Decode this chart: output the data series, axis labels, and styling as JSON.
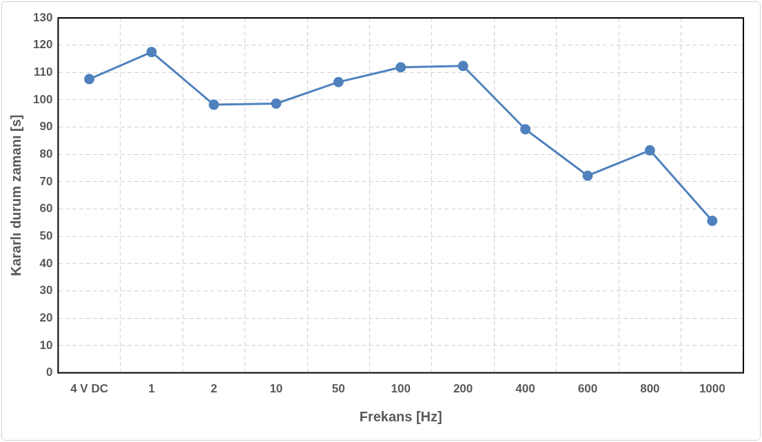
{
  "chart_data": {
    "type": "line",
    "xlabel": "Frekans [Hz]",
    "ylabel": "Kararlı durum zamanı [s]",
    "categories": [
      "4 V DC",
      "1",
      "2",
      "10",
      "50",
      "100",
      "200",
      "400",
      "600",
      "800",
      "1000"
    ],
    "series": [
      {
        "color": "#4f81bd",
        "values": [
          107.6,
          117.5,
          98.2,
          98.6,
          106.5,
          111.9,
          112.4,
          89.2,
          72.2,
          81.5,
          55.7
        ]
      }
    ],
    "ylim": [
      0,
      130
    ],
    "yticks": [
      0,
      10,
      20,
      30,
      40,
      50,
      60,
      70,
      80,
      90,
      100,
      110,
      120,
      130
    ],
    "grid": true,
    "legend": false,
    "marker": "circle",
    "line_style": "solid"
  }
}
